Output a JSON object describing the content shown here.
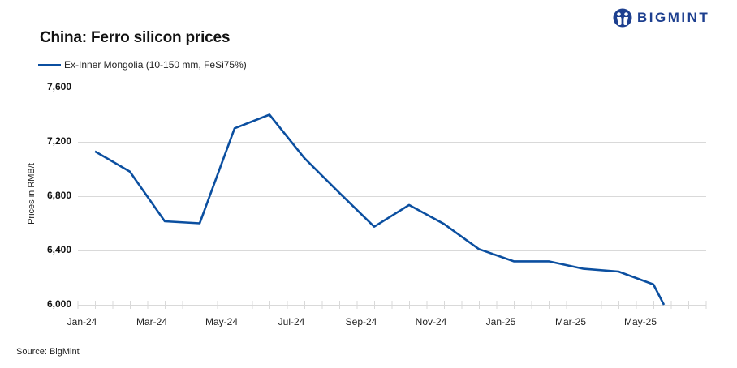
{
  "header": {
    "title": "China: Ferro silicon prices",
    "logo_text": "BIGMINT",
    "logo_color": "#1d3f8f"
  },
  "legend": {
    "series_label": "Ex-Inner Mongolia (10-150 mm, FeSi75%)",
    "series_color": "#0b4fa0"
  },
  "axes": {
    "ylabel": "Prices in RMB/t",
    "yticks": [
      "7,600",
      "7,200",
      "6,800",
      "6,400",
      "6,000"
    ],
    "xticks": [
      "Jan-24",
      "Mar-24",
      "May-24",
      "Jul-24",
      "Sep-24",
      "Nov-24",
      "Jan-25",
      "Mar-25",
      "May-25"
    ]
  },
  "footer": {
    "source": "Source:  BigMint"
  },
  "chart_data": {
    "type": "line",
    "title": "China: Ferro silicon prices",
    "xlabel": "",
    "ylabel": "Prices in RMB/t",
    "ylim": [
      6000,
      7600
    ],
    "yticks": [
      6000,
      6400,
      6800,
      7200,
      7600
    ],
    "grid": true,
    "legend_position": "top-left",
    "x": [
      "Jan-24",
      "Feb-24",
      "Mar-24",
      "Apr-24",
      "May-24",
      "Jun-24",
      "Jul-24",
      "Aug-24",
      "Sep-24",
      "Oct-24",
      "Nov-24",
      "Dec-24",
      "Jan-25",
      "Feb-25",
      "Mar-25",
      "Apr-25",
      "May-25",
      "Jun-25 (partial)"
    ],
    "series": [
      {
        "name": "Ex-Inner Mongolia (10-150 mm, FeSi75%)",
        "color": "#0b4fa0",
        "values": [
          7130,
          6980,
          6615,
          6600,
          7300,
          7400,
          7080,
          6825,
          6575,
          6735,
          6595,
          6410,
          6320,
          6320,
          6265,
          6245,
          6150,
          6000
        ]
      }
    ]
  }
}
